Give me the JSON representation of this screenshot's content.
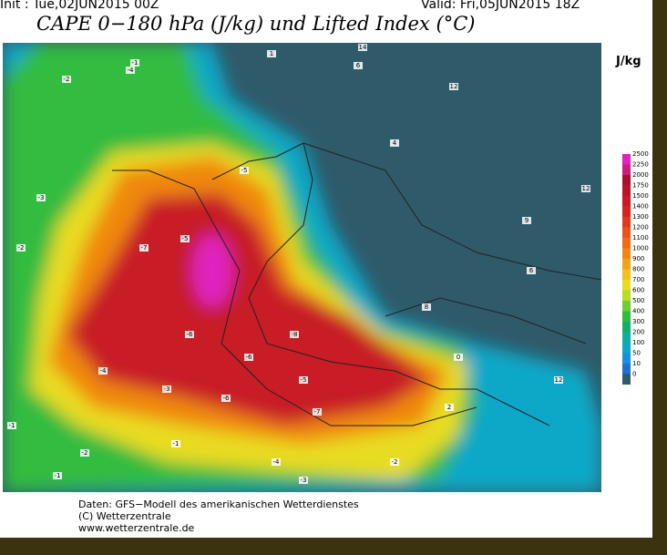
{
  "header": {
    "init": "Init : Tue,02JUN2015 00Z",
    "valid": "Valid: Fri,05JUN2015 18Z",
    "title": "CAPE 0−180 hPa (J/kg) und Lifted Index (°C)"
  },
  "legend": {
    "unit": "J/kg",
    "levels": [
      {
        "value": 2500,
        "color": "#e020c0"
      },
      {
        "value": 2250,
        "color": "#c8207a"
      },
      {
        "value": 2000,
        "color": "#a81030"
      },
      {
        "value": 1750,
        "color": "#b81428"
      },
      {
        "value": 1500,
        "color": "#c81a28"
      },
      {
        "value": 1400,
        "color": "#d82420"
      },
      {
        "value": 1300,
        "color": "#e03a1c"
      },
      {
        "value": 1200,
        "color": "#e85418"
      },
      {
        "value": 1100,
        "color": "#f06c14"
      },
      {
        "value": 1000,
        "color": "#f08810"
      },
      {
        "value": 900,
        "color": "#f0a418"
      },
      {
        "value": 800,
        "color": "#f0c020"
      },
      {
        "value": 700,
        "color": "#e8dc20"
      },
      {
        "value": 600,
        "color": "#b8dc20"
      },
      {
        "value": 500,
        "color": "#70cc30"
      },
      {
        "value": 400,
        "color": "#30bc40"
      },
      {
        "value": 300,
        "color": "#10b070"
      },
      {
        "value": 200,
        "color": "#10b0a0"
      },
      {
        "value": 100,
        "color": "#10a8c8"
      },
      {
        "value": 50,
        "color": "#1890e0"
      },
      {
        "value": 10,
        "color": "#2070d0"
      },
      {
        "value": 0,
        "color": "#2f5a6a"
      }
    ]
  },
  "map": {
    "labels": [
      -1,
      -2,
      -4,
      -3,
      -2,
      1,
      6,
      12,
      14,
      12,
      9,
      8,
      12,
      -5,
      -7,
      -5,
      -6,
      -6,
      -5,
      -7,
      -8,
      -4,
      -6,
      -3,
      -2,
      -1,
      4,
      6,
      2,
      0,
      -1,
      -4,
      -2,
      -3,
      -1
    ]
  },
  "footer": [
    "Daten: GFS−Modell des amerikanischen Wetterdienstes",
    "(C) Wetterzentrale",
    "www.wetterzentrale.de"
  ]
}
